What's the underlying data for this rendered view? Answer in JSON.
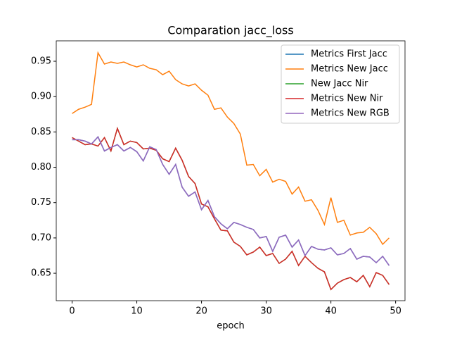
{
  "chart_data": {
    "type": "line",
    "title": "Comparation jacc_loss",
    "xlabel": "epoch",
    "x": [
      0,
      1,
      2,
      3,
      4,
      5,
      6,
      7,
      8,
      9,
      10,
      11,
      12,
      13,
      14,
      15,
      16,
      17,
      18,
      19,
      20,
      21,
      22,
      23,
      24,
      25,
      26,
      27,
      28,
      29,
      30,
      31,
      32,
      33,
      34,
      35,
      36,
      37,
      38,
      39,
      40,
      41,
      42,
      43,
      44,
      45,
      46,
      47,
      48,
      49
    ],
    "series": [
      {
        "name": "Metrics First Jacc",
        "color": "#1f77b4",
        "values": [
          0.839,
          0.839,
          0.837,
          0.833,
          0.843,
          0.823,
          0.828,
          0.832,
          0.823,
          0.828,
          0.822,
          0.809,
          0.829,
          0.825,
          0.804,
          0.79,
          0.804,
          0.772,
          0.759,
          0.765,
          0.74,
          0.753,
          0.73,
          0.72,
          0.713,
          0.722,
          0.719,
          0.715,
          0.712,
          0.7,
          0.702,
          0.681,
          0.701,
          0.704,
          0.687,
          0.697,
          0.675,
          0.688,
          0.684,
          0.683,
          0.686,
          0.676,
          0.678,
          0.685,
          0.67,
          0.674,
          0.673,
          0.665,
          0.674,
          0.661
        ]
      },
      {
        "name": "Metrics New Jacc",
        "color": "#ff7f0e",
        "values": [
          0.876,
          0.882,
          0.885,
          0.889,
          0.962,
          0.946,
          0.949,
          0.947,
          0.949,
          0.945,
          0.942,
          0.945,
          0.94,
          0.938,
          0.931,
          0.936,
          0.924,
          0.918,
          0.915,
          0.918,
          0.909,
          0.902,
          0.882,
          0.884,
          0.871,
          0.862,
          0.847,
          0.803,
          0.804,
          0.788,
          0.797,
          0.779,
          0.783,
          0.78,
          0.762,
          0.772,
          0.752,
          0.754,
          0.739,
          0.719,
          0.757,
          0.722,
          0.725,
          0.704,
          0.707,
          0.708,
          0.715,
          0.706,
          0.691,
          0.7
        ]
      },
      {
        "name": "New Jacc Nir",
        "color": "#2ca02c",
        "values": [
          0.842,
          0.837,
          0.832,
          0.833,
          0.83,
          0.842,
          0.823,
          0.855,
          0.832,
          0.837,
          0.835,
          0.826,
          0.827,
          0.824,
          0.812,
          0.808,
          0.827,
          0.81,
          0.787,
          0.777,
          0.748,
          0.744,
          0.727,
          0.711,
          0.71,
          0.694,
          0.688,
          0.676,
          0.68,
          0.687,
          0.675,
          0.678,
          0.664,
          0.67,
          0.681,
          0.661,
          0.674,
          0.665,
          0.657,
          0.652,
          0.627,
          0.636,
          0.641,
          0.644,
          0.638,
          0.647,
          0.631,
          0.651,
          0.647,
          0.634
        ]
      },
      {
        "name": "Metrics New Nir",
        "color": "#d62728",
        "values": [
          0.842,
          0.837,
          0.832,
          0.833,
          0.83,
          0.842,
          0.823,
          0.855,
          0.832,
          0.837,
          0.835,
          0.826,
          0.827,
          0.824,
          0.812,
          0.808,
          0.827,
          0.81,
          0.787,
          0.777,
          0.748,
          0.744,
          0.727,
          0.711,
          0.71,
          0.694,
          0.688,
          0.676,
          0.68,
          0.687,
          0.675,
          0.678,
          0.664,
          0.67,
          0.681,
          0.661,
          0.674,
          0.665,
          0.657,
          0.652,
          0.627,
          0.636,
          0.641,
          0.644,
          0.638,
          0.647,
          0.631,
          0.651,
          0.647,
          0.634
        ]
      },
      {
        "name": "Metrics New RGB",
        "color": "#9467bd",
        "values": [
          0.839,
          0.839,
          0.837,
          0.833,
          0.843,
          0.823,
          0.828,
          0.832,
          0.823,
          0.828,
          0.822,
          0.809,
          0.829,
          0.825,
          0.804,
          0.79,
          0.804,
          0.772,
          0.759,
          0.765,
          0.74,
          0.753,
          0.73,
          0.72,
          0.713,
          0.722,
          0.719,
          0.715,
          0.712,
          0.7,
          0.702,
          0.681,
          0.701,
          0.704,
          0.687,
          0.697,
          0.675,
          0.688,
          0.684,
          0.683,
          0.686,
          0.676,
          0.678,
          0.685,
          0.67,
          0.674,
          0.673,
          0.665,
          0.674,
          0.661
        ]
      }
    ],
    "xlim": [
      -2.45,
      51.45
    ],
    "ylim": [
      0.6112,
      0.9789
    ],
    "xticks": [
      0,
      10,
      20,
      30,
      40,
      50
    ],
    "yticks": [
      0.65,
      {
        "value": 0.7,
        "label": "0.70"
      },
      0.75,
      {
        "value": 0.8,
        "label": "0.80"
      },
      0.85,
      {
        "value": 0.9,
        "label": "0.90"
      },
      0.95
    ],
    "legend": "upper right"
  }
}
